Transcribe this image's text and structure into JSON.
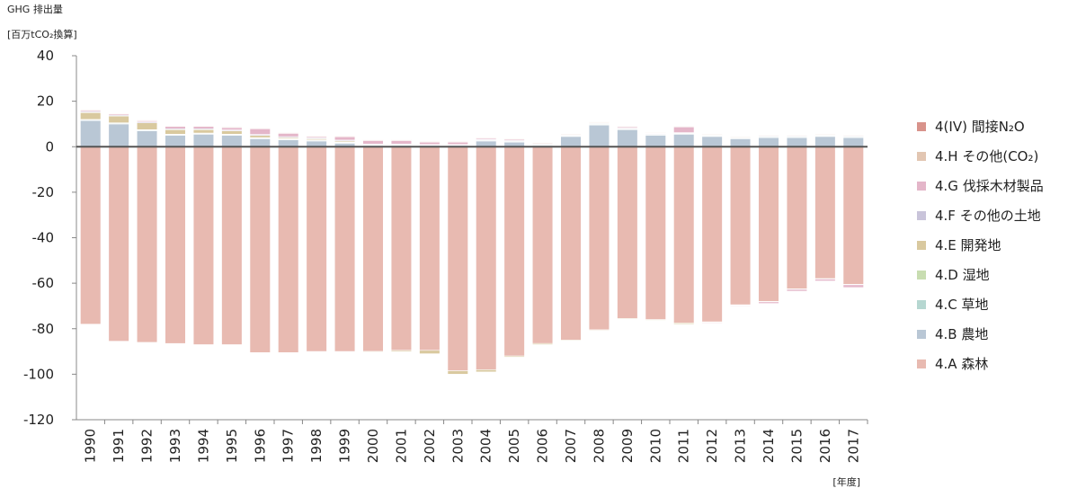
{
  "chart_data": {
    "type": "bar",
    "stacked": true,
    "y_title": "GHG 排出量",
    "y_unit": "[百万tCO₂換算]",
    "x_unit": "[年度]",
    "categories": [
      "1990",
      "1991",
      "1992",
      "1993",
      "1994",
      "1995",
      "1996",
      "1997",
      "1998",
      "1999",
      "2000",
      "2001",
      "2002",
      "2003",
      "2004",
      "2005",
      "2006",
      "2007",
      "2008",
      "2009",
      "2010",
      "2011",
      "2012",
      "2013",
      "2014",
      "2015",
      "2016",
      "2017"
    ],
    "ylim": [
      -120,
      40
    ],
    "yticks": [
      -120,
      -100,
      -80,
      -60,
      -40,
      -20,
      0,
      20,
      40
    ],
    "series": [
      {
        "name": "4(IV) 間接N₂O",
        "color": "#d8938b",
        "values": [
          0.1,
          0.1,
          0.1,
          0.1,
          0.1,
          0.1,
          0.1,
          0.1,
          0.1,
          0.1,
          0.1,
          0.1,
          0.1,
          0.1,
          0.1,
          0.1,
          0.1,
          0.1,
          0.1,
          0.1,
          0.1,
          0.1,
          0.1,
          0.1,
          0.1,
          0.1,
          0.1,
          0.1
        ]
      },
      {
        "name": "4.H その他(CO₂)",
        "color": "#e2c6b2",
        "values": [
          0.3,
          0.3,
          0.3,
          0.3,
          0.3,
          0.3,
          0.3,
          0.3,
          0.3,
          0.3,
          0.3,
          0.3,
          0.3,
          0.3,
          0.3,
          0.3,
          0.3,
          0.3,
          0.3,
          0.3,
          0.3,
          0.3,
          0.3,
          0.3,
          0.3,
          0.3,
          0.3,
          0.3
        ]
      },
      {
        "name": "4.G 伐採木材製品",
        "color": "#e4b6c9",
        "values": [
          0.5,
          0.5,
          0.5,
          1,
          1,
          1,
          2.5,
          1.5,
          0.5,
          1.5,
          1.5,
          1.5,
          1,
          1,
          0.5,
          0.5,
          0.3,
          0.2,
          0.2,
          0.5,
          0.2,
          2.5,
          -0.3,
          -0.3,
          -0.7,
          -0.8,
          -0.8,
          -1.2
        ]
      },
      {
        "name": "4.F その他の土地",
        "color": "#c9c4da",
        "values": [
          0.4,
          0.4,
          0.4,
          0.4,
          0.4,
          0.4,
          0.4,
          0.4,
          0.4,
          0.4,
          0.3,
          0.3,
          0.3,
          0.3,
          0.3,
          0.3,
          0.3,
          0.3,
          0.3,
          0.3,
          0.3,
          0.3,
          0.3,
          0.3,
          0.3,
          0.3,
          0.3,
          0.3
        ]
      },
      {
        "name": "4.E 開発地",
        "color": "#d9c99f",
        "values": [
          3,
          3,
          3,
          2,
          1.5,
          1.5,
          1,
          0.5,
          0.5,
          0.5,
          -0.3,
          -0.5,
          -1.5,
          -1.5,
          -1,
          -0.5,
          -0.5,
          -0.3,
          -0.3,
          -0.3,
          -0.3,
          -0.5,
          -0.3,
          -0.2,
          -0.2,
          -0.2,
          -0.2,
          -0.2
        ]
      },
      {
        "name": "4.D 湿地",
        "color": "#c8ddb1",
        "values": [
          0.2,
          0.2,
          0.2,
          0.2,
          0.2,
          0.2,
          0.2,
          0.2,
          0.2,
          0.2,
          0.1,
          0.1,
          0.1,
          0.1,
          0.1,
          0.1,
          0.1,
          0.1,
          0.1,
          0.1,
          0.1,
          0.1,
          0.1,
          0.1,
          0.1,
          0.1,
          0.1,
          0.1
        ]
      },
      {
        "name": "4.C 草地",
        "color": "#b6d7d1",
        "values": [
          0.3,
          0.3,
          0.3,
          0.3,
          0.3,
          0.3,
          0.3,
          0.3,
          0.3,
          0.3,
          0.3,
          0.3,
          0.3,
          0.3,
          0.3,
          0.3,
          0.3,
          0.3,
          0.3,
          0.3,
          0.3,
          0.3,
          0.3,
          0.3,
          0.3,
          0.3,
          0.3,
          0.3
        ]
      },
      {
        "name": "4.B 農地",
        "color": "#b9c7d5",
        "values": [
          11.5,
          10,
          7,
          5,
          5.5,
          5,
          3.5,
          3,
          2.5,
          1.5,
          0.5,
          0.5,
          0.3,
          0.3,
          2.5,
          2,
          0.5,
          4.5,
          9.5,
          7.5,
          5,
          5.5,
          4.5,
          3.5,
          4,
          4,
          4.5,
          4
        ]
      },
      {
        "name": "4.A 森林",
        "color": "#e8bab1",
        "values": [
          -78,
          -85.5,
          -86,
          -86.5,
          -87,
          -87,
          -90.5,
          -90.5,
          -90,
          -90,
          -90,
          -89.5,
          -89.5,
          -98.5,
          -98,
          -92,
          -86.5,
          -85,
          -80.5,
          -75.5,
          -76,
          -77.5,
          -77,
          -69.5,
          -68,
          -62.5,
          -58,
          -60.5
        ]
      }
    ],
    "zero_line": true
  }
}
